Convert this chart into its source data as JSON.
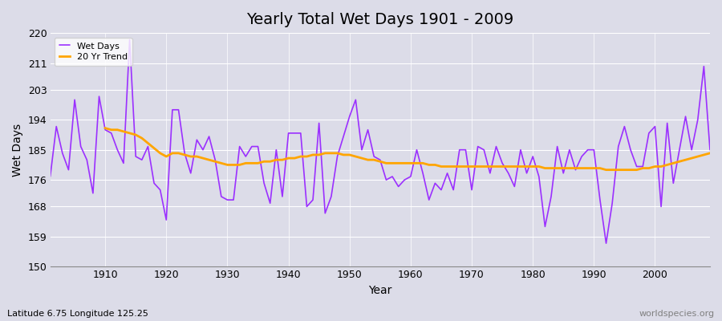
{
  "title": "Yearly Total Wet Days 1901 - 2009",
  "xlabel": "Year",
  "ylabel": "Wet Days",
  "subtitle": "Latitude 6.75 Longitude 125.25",
  "watermark": "worldspecies.org",
  "ylim": [
    150,
    220
  ],
  "yticks": [
    150,
    159,
    168,
    176,
    185,
    194,
    203,
    211,
    220
  ],
  "bg_color": "#dcdce8",
  "wet_days_color": "#9B30FF",
  "trend_color": "#FFA500",
  "years": [
    1901,
    1902,
    1903,
    1904,
    1905,
    1906,
    1907,
    1908,
    1909,
    1910,
    1911,
    1912,
    1913,
    1914,
    1915,
    1916,
    1917,
    1918,
    1919,
    1920,
    1921,
    1922,
    1923,
    1924,
    1925,
    1926,
    1927,
    1928,
    1929,
    1930,
    1931,
    1932,
    1933,
    1934,
    1935,
    1936,
    1937,
    1938,
    1939,
    1940,
    1941,
    1942,
    1943,
    1944,
    1945,
    1946,
    1947,
    1948,
    1950,
    1951,
    1952,
    1953,
    1954,
    1955,
    1956,
    1957,
    1958,
    1959,
    1960,
    1961,
    1962,
    1963,
    1964,
    1965,
    1966,
    1967,
    1968,
    1969,
    1970,
    1971,
    1972,
    1973,
    1974,
    1975,
    1976,
    1977,
    1978,
    1979,
    1980,
    1981,
    1982,
    1983,
    1984,
    1985,
    1986,
    1987,
    1988,
    1989,
    1990,
    1991,
    1992,
    1993,
    1994,
    1995,
    1996,
    1997,
    1998,
    1999,
    2000,
    2001,
    2002,
    2003,
    2004,
    2005,
    2006,
    2007,
    2008,
    2009
  ],
  "wet_days": [
    177,
    192,
    184,
    179,
    200,
    186,
    182,
    172,
    201,
    191,
    190,
    185,
    181,
    218,
    183,
    182,
    186,
    175,
    173,
    164,
    197,
    197,
    184,
    178,
    188,
    185,
    189,
    182,
    171,
    170,
    170,
    186,
    183,
    186,
    186,
    175,
    169,
    185,
    171,
    190,
    190,
    190,
    168,
    170,
    193,
    166,
    171,
    183,
    195,
    200,
    185,
    191,
    183,
    182,
    176,
    177,
    174,
    176,
    177,
    185,
    178,
    170,
    175,
    173,
    178,
    173,
    185,
    185,
    173,
    186,
    185,
    178,
    186,
    181,
    178,
    174,
    185,
    178,
    183,
    177,
    162,
    171,
    186,
    178,
    185,
    179,
    183,
    185,
    185,
    170,
    157,
    169,
    186,
    192,
    185,
    180,
    180,
    190,
    192,
    168,
    193,
    175,
    185,
    195,
    185,
    194,
    210,
    185
  ],
  "trend_years": [
    1910,
    1911,
    1912,
    1913,
    1914,
    1915,
    1916,
    1917,
    1918,
    1919,
    1920,
    1921,
    1922,
    1923,
    1924,
    1925,
    1926,
    1927,
    1928,
    1929,
    1930,
    1931,
    1932,
    1933,
    1934,
    1935,
    1936,
    1937,
    1938,
    1939,
    1940,
    1941,
    1942,
    1943,
    1944,
    1945,
    1946,
    1947,
    1948,
    1949,
    1950,
    1951,
    1952,
    1953,
    1954,
    1955,
    1956,
    1957,
    1958,
    1959,
    1960,
    1961,
    1962,
    1963,
    1964,
    1965,
    1966,
    1967,
    1968,
    1969,
    1970,
    1971,
    1972,
    1973,
    1974,
    1975,
    1976,
    1977,
    1978,
    1979,
    1980,
    1981,
    1982,
    1983,
    1984,
    1985,
    1986,
    1987,
    1988,
    1989,
    1990,
    1991,
    1992,
    1993,
    1994,
    1995,
    1996,
    1997,
    1998,
    1999,
    2000,
    2001,
    2002,
    2003,
    2004,
    2005,
    2006,
    2007,
    2008,
    2009
  ],
  "trend_values": [
    191.5,
    191.0,
    191.0,
    190.5,
    190.0,
    189.5,
    188.5,
    187.0,
    185.5,
    184.0,
    183.0,
    184.0,
    184.0,
    183.5,
    183.0,
    183.0,
    182.5,
    182.0,
    181.5,
    181.0,
    180.5,
    180.5,
    180.5,
    181.0,
    181.0,
    181.0,
    181.5,
    181.5,
    182.0,
    182.0,
    182.5,
    182.5,
    183.0,
    183.0,
    183.5,
    183.5,
    184.0,
    184.0,
    184.0,
    183.5,
    183.5,
    183.0,
    182.5,
    182.0,
    182.0,
    181.5,
    181.0,
    181.0,
    181.0,
    181.0,
    181.0,
    181.0,
    181.0,
    180.5,
    180.5,
    180.0,
    180.0,
    180.0,
    180.0,
    180.0,
    180.0,
    180.0,
    180.0,
    180.0,
    180.0,
    180.0,
    180.0,
    180.0,
    180.0,
    180.0,
    180.0,
    180.0,
    179.5,
    179.5,
    179.5,
    179.5,
    179.5,
    179.5,
    179.5,
    179.5,
    179.5,
    179.5,
    179.0,
    179.0,
    179.0,
    179.0,
    179.0,
    179.0,
    179.5,
    179.5,
    180.0,
    180.0,
    180.5,
    181.0,
    181.5,
    182.0,
    182.5,
    183.0,
    183.5,
    184.0
  ]
}
